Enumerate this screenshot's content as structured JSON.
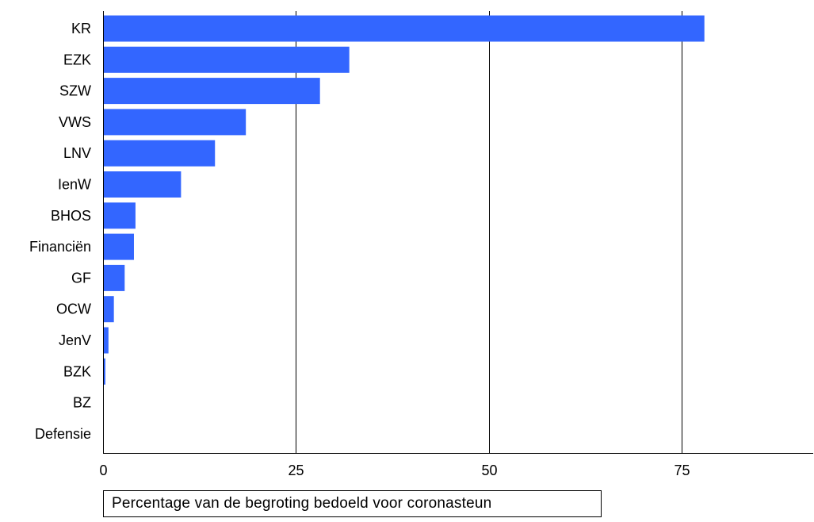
{
  "chart_data": {
    "type": "bar",
    "orientation": "horizontal",
    "categories": [
      "KR",
      "EZK",
      "SZW",
      "VWS",
      "LNV",
      "IenW",
      "BHOS",
      "Financiën",
      "GF",
      "OCW",
      "JenV",
      "BZK",
      "BZ",
      "Defensie"
    ],
    "values": [
      77.8,
      31.8,
      28.0,
      18.4,
      14.4,
      10.0,
      4.1,
      3.9,
      2.7,
      1.3,
      0.6,
      0.2,
      0,
      0
    ],
    "xlabel": "Percentage van de begroting bedoeld voor coronasteun",
    "ylabel": "",
    "xlim": [
      0,
      92
    ],
    "xticks": [
      0,
      25,
      50,
      75
    ],
    "grid": "vertical",
    "bar_color": "#3366ff"
  }
}
